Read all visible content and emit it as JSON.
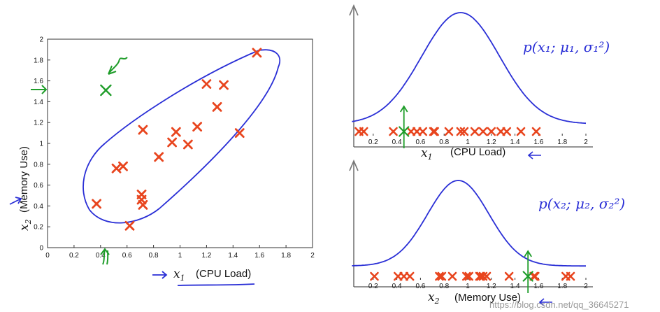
{
  "chart_data": [
    {
      "type": "scatter",
      "title": "",
      "xlabel": "x1 (CPU Load)",
      "xlabel_var": "x",
      "xlabel_sub": "1",
      "xlabel_text": "(CPU Load)",
      "ylabel": "x2 (Memory Use)",
      "ylabel_var": "x",
      "ylabel_sub": "2",
      "ylabel_text": "(Memory Use)",
      "xlim": [
        0,
        2
      ],
      "ylim": [
        0,
        2
      ],
      "x_ticks": [
        "0",
        "0.2",
        "0.4",
        "0.6",
        "0.8",
        "1",
        "1.2",
        "1.4",
        "1.6",
        "1.8",
        "2"
      ],
      "y_ticks": [
        "0",
        "0.2",
        "0.4",
        "0.6",
        "0.8",
        "1",
        "1.2",
        "1.4",
        "1.6",
        "1.8",
        "2"
      ],
      "grid": false,
      "points": [
        {
          "x": 0.37,
          "y": 0.42
        },
        {
          "x": 0.52,
          "y": 0.76
        },
        {
          "x": 0.57,
          "y": 0.78
        },
        {
          "x": 0.62,
          "y": 0.21
        },
        {
          "x": 0.71,
          "y": 0.51
        },
        {
          "x": 0.71,
          "y": 0.46
        },
        {
          "x": 0.72,
          "y": 0.41
        },
        {
          "x": 0.72,
          "y": 1.13
        },
        {
          "x": 0.84,
          "y": 0.87
        },
        {
          "x": 0.94,
          "y": 1.01
        },
        {
          "x": 0.97,
          "y": 1.11
        },
        {
          "x": 1.06,
          "y": 0.99
        },
        {
          "x": 1.13,
          "y": 1.16
        },
        {
          "x": 1.2,
          "y": 1.57
        },
        {
          "x": 1.28,
          "y": 1.35
        },
        {
          "x": 1.33,
          "y": 1.56
        },
        {
          "x": 1.45,
          "y": 1.1
        },
        {
          "x": 1.58,
          "y": 1.87
        }
      ],
      "annotations": [
        {
          "kind": "anomaly-point",
          "color": "#1f9d2a",
          "x": 0.44,
          "y": 1.51
        },
        {
          "kind": "ellipse-contour",
          "color": "#2a2fd6"
        }
      ],
      "colors": {
        "points": "#e8451e",
        "annotation": "#1f9d2a",
        "contour": "#2a2fd6"
      }
    },
    {
      "type": "line",
      "title": "",
      "xlabel": "x1 (CPU Load)",
      "xlabel_var": "x",
      "xlabel_sub": "1",
      "xlabel_text": "(CPU Load)",
      "annotation_text": "p(x₁; μ₁, σ₁²)",
      "xlim": [
        0,
        2
      ],
      "x_ticks": [
        "0.2",
        "0.4",
        "0.6",
        "0.8",
        "1",
        "1.2",
        "1.4",
        "1.6",
        "1.8",
        "2"
      ],
      "curve": {
        "mean": 0.94,
        "sigma": 0.33,
        "baseline": 0.03
      },
      "markers_x": [
        0.08,
        0.12,
        0.37,
        0.52,
        0.57,
        0.62,
        0.71,
        0.72,
        0.84,
        0.94,
        0.97,
        1.06,
        1.13,
        1.2,
        1.28,
        1.33,
        1.45,
        1.58
      ],
      "anomaly_x": 0.46,
      "colors": {
        "curve": "#2a2fd6",
        "points": "#e8451e",
        "annotation": "#1f9d2a"
      }
    },
    {
      "type": "line",
      "title": "",
      "xlabel": "x2 (Memory Use)",
      "xlabel_var": "x",
      "xlabel_sub": "2",
      "xlabel_text": "(Memory Use)",
      "annotation_text": "p(x₂; μ₂, σ₂²)",
      "xlim": [
        0,
        2
      ],
      "x_ticks": [
        "0.2",
        "0.4",
        "0.6",
        "0.8",
        "1",
        "1.2",
        "1.4",
        "1.6",
        "1.8",
        "2"
      ],
      "curve": {
        "mean": 0.92,
        "sigma": 0.26,
        "baseline": 0.06
      },
      "markers_x": [
        0.21,
        0.41,
        0.46,
        0.51,
        0.76,
        0.78,
        0.87,
        0.99,
        1.01,
        1.1,
        1.11,
        1.13,
        1.16,
        1.35,
        1.56,
        1.57,
        1.83,
        1.87
      ],
      "anomaly_x": 1.51,
      "colors": {
        "curve": "#2a2fd6",
        "points": "#e8451e",
        "annotation": "#1f9d2a"
      }
    }
  ],
  "watermark": "https://blog.csdn.net/qq_36645271"
}
